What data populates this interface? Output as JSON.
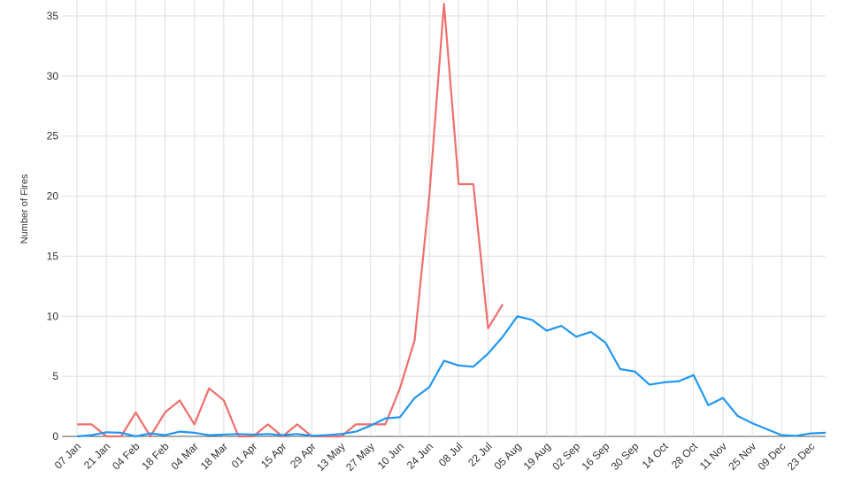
{
  "chart_data": {
    "type": "line",
    "y_label": "Number of Fires",
    "categories": [
      "07 Jan",
      null,
      "21 Jan",
      null,
      "04 Feb",
      null,
      "18 Feb",
      null,
      "04 Mar",
      null,
      "18 Mar",
      null,
      "01 Apr",
      null,
      "15 Apr",
      null,
      "29 Apr",
      null,
      "13 May",
      null,
      "27 May",
      null,
      "10 Jun",
      null,
      "24 Jun",
      null,
      "08 Jul",
      null,
      "22 Jul",
      null,
      "05 Aug",
      null,
      "19 Aug",
      null,
      "02 Sep",
      null,
      "16 Sep",
      null,
      "30 Sep",
      null,
      "14 Oct",
      null,
      "28 Oct",
      null,
      "11 Nov",
      null,
      "25 Nov",
      null,
      "09 Dec",
      null,
      "23 Dec",
      null
    ],
    "series": [
      {
        "color": "#ef6f6c",
        "values": [
          1,
          1,
          0,
          0,
          2,
          0,
          2,
          3,
          1,
          4,
          3,
          0,
          0,
          1,
          0,
          1,
          0,
          0,
          0,
          1,
          1,
          1,
          4,
          8,
          20,
          36,
          21,
          21,
          9,
          11,
          null,
          null,
          null,
          null,
          null,
          null,
          null,
          null,
          null,
          null,
          null,
          null,
          null,
          null,
          null,
          null,
          null,
          null,
          null,
          null,
          null,
          null
        ]
      },
      {
        "color": "#2196f3",
        "values": [
          0,
          0.1,
          0.35,
          0.3,
          0,
          0.25,
          0.1,
          0.4,
          0.3,
          0.1,
          0.15,
          0.2,
          0.15,
          0.2,
          0.1,
          0.2,
          0.05,
          0.1,
          0.2,
          0.4,
          0.9,
          1.5,
          1.6,
          3.2,
          4.1,
          6.3,
          5.9,
          5.8,
          6.9,
          8.3,
          10,
          9.7,
          8.8,
          9.2,
          8.3,
          8.7,
          7.8,
          5.6,
          5.4,
          4.3,
          4.5,
          4.6,
          5.1,
          2.6,
          3.2,
          1.7,
          1.1,
          0.6,
          0.1,
          0.05,
          0.25,
          0.3
        ]
      }
    ],
    "ylim": [
      0,
      35
    ],
    "yticks": [
      0,
      5,
      10,
      15,
      20,
      25,
      30,
      35
    ],
    "grid": true
  }
}
